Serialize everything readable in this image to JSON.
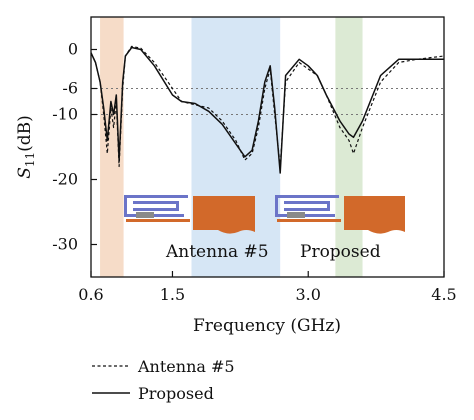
{
  "chart_data": {
    "type": "line",
    "xlabel": "Frequency (GHz)",
    "ylabel_main": "S",
    "ylabel_sub": "11",
    "ylabel_unit": "(dB)",
    "xlim": [
      0.6,
      4.5
    ],
    "ylim": [
      -35,
      5
    ],
    "xticks": [
      {
        "value": 0.6,
        "label": "0.6"
      },
      {
        "value": 1.5,
        "label": "1.5"
      },
      {
        "value": 3.0,
        "label": "3.0"
      },
      {
        "value": 4.5,
        "label": "4.5"
      }
    ],
    "yticks": [
      {
        "value": 0,
        "label": "0"
      },
      {
        "value": -6,
        "label": "-6"
      },
      {
        "value": -10,
        "label": "-10"
      },
      {
        "value": -20,
        "label": "-20"
      },
      {
        "value": -30,
        "label": "-30"
      }
    ],
    "reference_lines": [
      -6,
      -10
    ],
    "bands": [
      {
        "x0": 0.7,
        "x1": 0.96,
        "color": "#f6dcc8"
      },
      {
        "x0": 1.71,
        "x1": 2.69,
        "color": "#d6e6f5"
      },
      {
        "x0": 3.3,
        "x1": 3.6,
        "color": "#dcead4"
      }
    ],
    "series": [
      {
        "name": "Antenna #5",
        "style": "dashed",
        "x": [
          0.6,
          0.65,
          0.7,
          0.74,
          0.78,
          0.82,
          0.85,
          0.88,
          0.91,
          0.95,
          0.98,
          1.05,
          1.15,
          1.3,
          1.5,
          1.6,
          1.75,
          1.9,
          2.05,
          2.2,
          2.3,
          2.38,
          2.45,
          2.52,
          2.58,
          2.63,
          2.69,
          2.75,
          2.9,
          3.0,
          3.1,
          3.2,
          3.35,
          3.45,
          3.5,
          3.6,
          3.8,
          4.0,
          4.2,
          4.5
        ],
        "y": [
          -0.5,
          -2,
          -5,
          -10,
          -16,
          -9,
          -12,
          -8,
          -18,
          -6,
          -1,
          0.5,
          0.2,
          -2,
          -6,
          -8,
          -8.5,
          -9,
          -11,
          -14,
          -17,
          -16,
          -12,
          -6,
          -3,
          -10,
          -18,
          -5,
          -2,
          -3,
          -4,
          -7,
          -12,
          -14,
          -16,
          -12,
          -5,
          -2,
          -1.5,
          -1
        ]
      },
      {
        "name": "Proposed",
        "style": "solid",
        "x": [
          0.6,
          0.65,
          0.7,
          0.74,
          0.78,
          0.82,
          0.85,
          0.88,
          0.91,
          0.95,
          0.98,
          1.05,
          1.15,
          1.3,
          1.5,
          1.6,
          1.75,
          1.9,
          2.05,
          2.2,
          2.3,
          2.38,
          2.45,
          2.52,
          2.58,
          2.63,
          2.69,
          2.75,
          2.9,
          3.0,
          3.1,
          3.2,
          3.35,
          3.45,
          3.5,
          3.6,
          3.8,
          4.0,
          4.2,
          4.5
        ],
        "y": [
          -0.5,
          -2,
          -5,
          -9,
          -14,
          -8,
          -10,
          -7,
          -17,
          -5,
          -1,
          0.3,
          0,
          -2.5,
          -7,
          -8,
          -8.3,
          -9.5,
          -11.5,
          -14.5,
          -16.5,
          -15.5,
          -11,
          -5,
          -2.5,
          -9,
          -19,
          -4,
          -1.5,
          -2.5,
          -4,
          -7,
          -11,
          -13,
          -13.5,
          -11,
          -4,
          -1.5,
          -1.5,
          -1.5
        ]
      }
    ],
    "insets": [
      {
        "label": "Antenna #5"
      },
      {
        "label": "Proposed"
      }
    ]
  }
}
